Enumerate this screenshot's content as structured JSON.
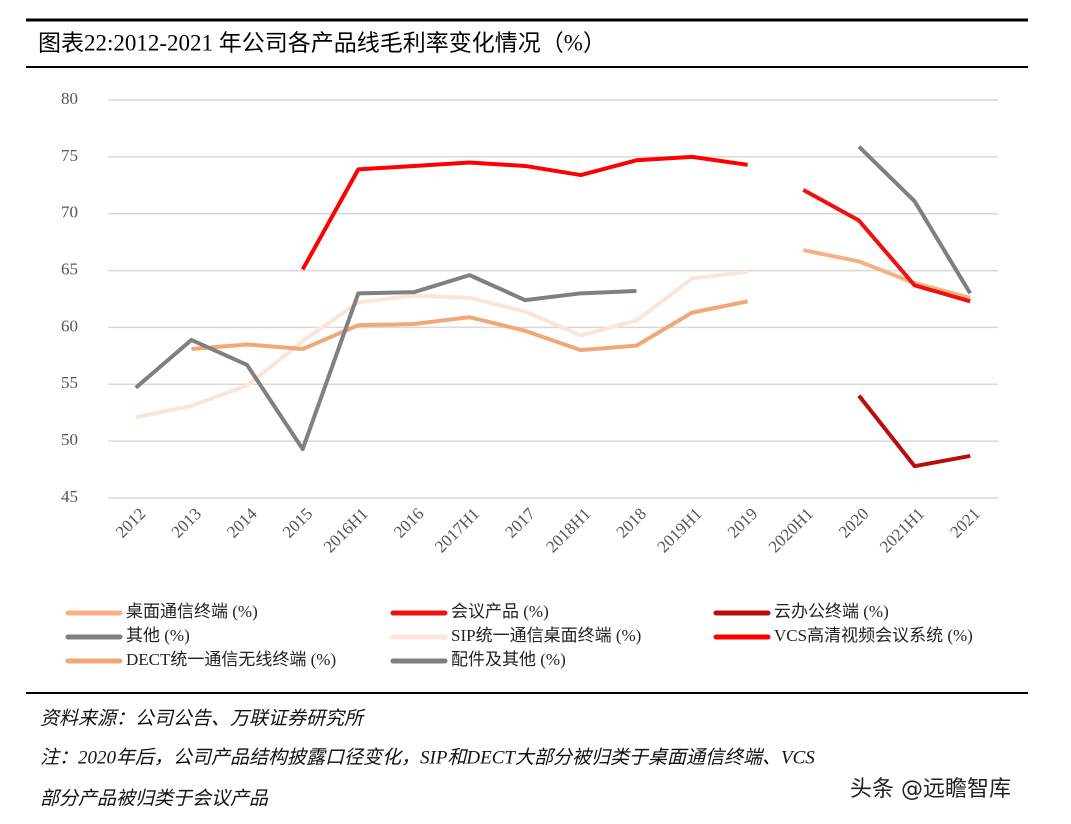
{
  "chart_data": {
    "type": "line",
    "title": "图表22:2012-2021 年公司各产品线毛利率变化情况（%）",
    "categories": [
      "2012",
      "2013",
      "2014",
      "2015",
      "2016H1",
      "2016",
      "2017H1",
      "2017",
      "2018H1",
      "2018",
      "2019H1",
      "2019",
      "2020H1",
      "2020",
      "2021H1",
      "2021"
    ],
    "ylim": [
      45,
      80
    ],
    "yticks": [
      45,
      50,
      55,
      60,
      65,
      70,
      75,
      80
    ],
    "grid": true,
    "series": [
      {
        "name": "桌面通信终端 (%)",
        "color": "#f4b183",
        "values": [
          null,
          null,
          null,
          null,
          null,
          null,
          null,
          null,
          null,
          null,
          null,
          null,
          66.8,
          65.8,
          63.9,
          62.6
        ]
      },
      {
        "name": "会议产品 (%)",
        "color": "#ee1111",
        "values": [
          null,
          null,
          null,
          null,
          null,
          null,
          null,
          null,
          null,
          null,
          null,
          null,
          72.1,
          69.4,
          63.7,
          62.3
        ]
      },
      {
        "name": "云办公终端 (%)",
        "color": "#b80d0d",
        "values": [
          null,
          null,
          null,
          null,
          null,
          null,
          null,
          null,
          null,
          null,
          null,
          null,
          null,
          54.0,
          47.8,
          48.7
        ]
      },
      {
        "name": "其他 (%)",
        "color": "#7f7f7f",
        "values": [
          null,
          null,
          null,
          null,
          null,
          null,
          null,
          null,
          null,
          null,
          null,
          null,
          null,
          75.9,
          71.1,
          63.0
        ]
      },
      {
        "name": "SIP统一通信桌面终端 (%)",
        "color": "#fbe5d6",
        "values": [
          52.1,
          53.1,
          54.9,
          58.8,
          62.2,
          62.8,
          62.6,
          61.4,
          59.3,
          60.6,
          64.3,
          64.9,
          null,
          null,
          null,
          null
        ]
      },
      {
        "name": "VCS高清视频会议系统 (%)",
        "color": "#ff0000",
        "values": [
          null,
          null,
          null,
          65.1,
          73.9,
          74.2,
          74.5,
          74.2,
          73.4,
          74.7,
          75.0,
          74.3,
          null,
          null,
          null,
          null
        ]
      },
      {
        "name": "DECT统一通信无线终端 (%)",
        "color": "#f0a878",
        "values": [
          null,
          58.1,
          58.5,
          58.1,
          60.2,
          60.3,
          60.9,
          59.7,
          58.0,
          58.4,
          61.3,
          62.3,
          null,
          null,
          null,
          null
        ]
      },
      {
        "name": "配件及其他 (%)",
        "color": "#808080",
        "values": [
          54.7,
          58.9,
          56.7,
          49.3,
          63.0,
          63.1,
          64.6,
          62.4,
          63.0,
          63.2,
          null,
          null,
          null,
          null,
          null,
          null
        ]
      }
    ],
    "source": "资料来源：公司公告、万联证券研究所",
    "note": [
      "注：2020年后，公司产品结构披露口径变化，SIP和DECT大部分被归类于桌面通信终端、VCS",
      "部分产品被归类于会议产品"
    ],
    "watermark": "头条 @远瞻智库"
  }
}
